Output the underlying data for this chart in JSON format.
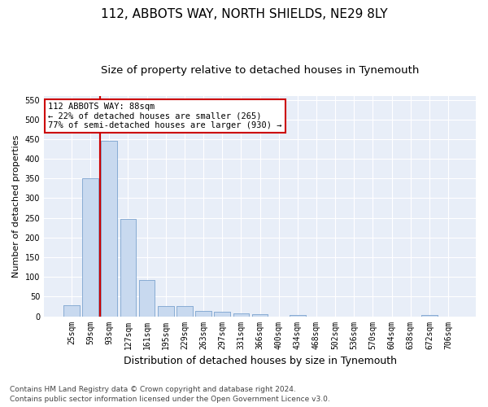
{
  "title1": "112, ABBOTS WAY, NORTH SHIELDS, NE29 8LY",
  "title2": "Size of property relative to detached houses in Tynemouth",
  "xlabel": "Distribution of detached houses by size in Tynemouth",
  "ylabel": "Number of detached properties",
  "bar_labels": [
    "25sqm",
    "59sqm",
    "93sqm",
    "127sqm",
    "161sqm",
    "195sqm",
    "229sqm",
    "263sqm",
    "297sqm",
    "331sqm",
    "366sqm",
    "400sqm",
    "434sqm",
    "468sqm",
    "502sqm",
    "536sqm",
    "570sqm",
    "604sqm",
    "638sqm",
    "672sqm",
    "706sqm"
  ],
  "bar_values": [
    28,
    350,
    445,
    247,
    93,
    25,
    25,
    13,
    11,
    8,
    5,
    0,
    4,
    0,
    0,
    0,
    0,
    0,
    0,
    4,
    0
  ],
  "bar_color": "#c8d9ef",
  "bar_edge_color": "#8aadd4",
  "ylim": [
    0,
    560
  ],
  "yticks": [
    0,
    50,
    100,
    150,
    200,
    250,
    300,
    350,
    400,
    450,
    500,
    550
  ],
  "property_bin_index": 1.5,
  "annotation_text": "112 ABBOTS WAY: 88sqm\n← 22% of detached houses are smaller (265)\n77% of semi-detached houses are larger (930) →",
  "annotation_box_color": "#ffffff",
  "annotation_box_edge_color": "#cc0000",
  "red_line_color": "#cc0000",
  "footer1": "Contains HM Land Registry data © Crown copyright and database right 2024.",
  "footer2": "Contains public sector information licensed under the Open Government Licence v3.0.",
  "bg_color": "#ffffff",
  "plot_bg_color": "#e8eef8",
  "grid_color": "#ffffff",
  "title1_fontsize": 11,
  "title2_fontsize": 9.5,
  "tick_fontsize": 7,
  "ylabel_fontsize": 8,
  "xlabel_fontsize": 9,
  "annotation_fontsize": 7.5,
  "footer_fontsize": 6.5
}
